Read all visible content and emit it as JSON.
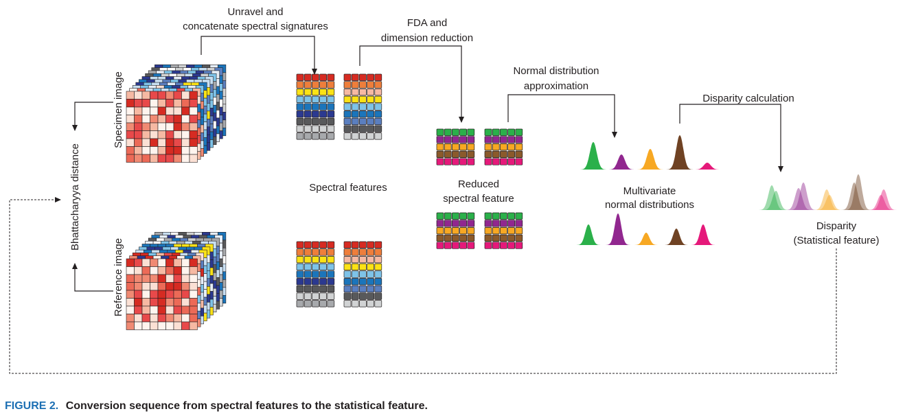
{
  "figure": {
    "labels": {
      "unravel_line1": "Unravel and",
      "unravel_line2": "concatenate spectral signatures",
      "fda_line1": "FDA and",
      "fda_line2": "dimension reduction",
      "normal_line1": "Normal distribution",
      "normal_line2": "approximation",
      "disparity_calc": "Disparity calculation",
      "specimen_image": "Specimen image",
      "reference_image": "Reference image",
      "bhattacharyya": "Bhattacharyya distance",
      "spectral_features": "Spectral features",
      "reduced_line1": "Reduced",
      "reduced_line2": "spectral feature",
      "mvn_line1": "Multivariate",
      "mvn_line2": "normal distributions",
      "disparity_line1": "Disparity",
      "disparity_line2": "(Statistical feature)"
    },
    "colors": {
      "spectral_rows": [
        "#d62b22",
        "#ee7e3b",
        "#fbe216",
        "#7ec3e8",
        "#1b75bb",
        "#2b3990",
        "#58595b",
        "#d1d3d4",
        "#a7a9ac"
      ],
      "reduced_rows": [
        "#2bb04a",
        "#91278f",
        "#f7a823",
        "#8b5a2b",
        "#e5197a"
      ],
      "distributions": [
        "#2bb04a",
        "#91278f",
        "#f7a823",
        "#6f4223",
        "#e5197a"
      ],
      "caption_accent": "#1c6fb3"
    }
  },
  "caption": {
    "number": "FIGURE 2.",
    "text": "Conversion sequence from spectral features to the statistical feature."
  }
}
